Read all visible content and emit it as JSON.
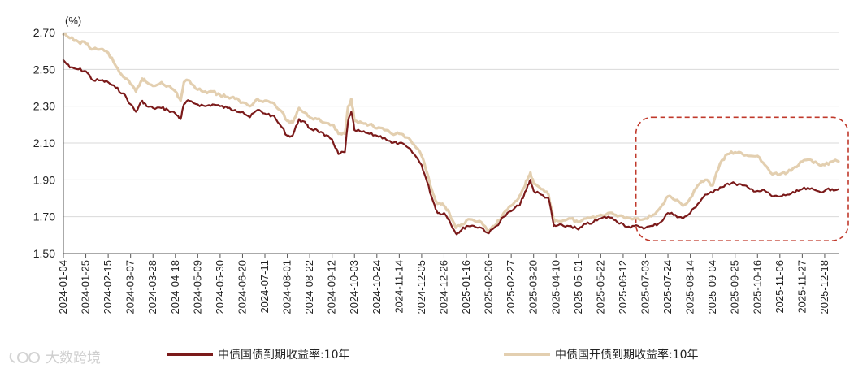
{
  "chart_data": {
    "type": "line",
    "unit_label": "(%)",
    "y_ticks": [
      "1.50",
      "1.70",
      "1.90",
      "2.10",
      "2.30",
      "2.50",
      "2.70"
    ],
    "ylim": [
      1.5,
      2.7
    ],
    "x_tick_labels": [
      "2024-01-04",
      "2024-01-25",
      "2024-02-15",
      "2024-03-07",
      "2024-03-28",
      "2024-04-18",
      "2024-05-09",
      "2024-05-30",
      "2024-06-20",
      "2024-07-11",
      "2024-08-01",
      "2024-08-22",
      "2024-09-12",
      "2024-10-03",
      "2024-10-24",
      "2024-11-14",
      "2024-12-05",
      "2024-12-26",
      "2025-01-16",
      "2025-02-06",
      "2025-02-27",
      "2025-03-20",
      "2025-04-10",
      "2025-05-01",
      "2025-05-22",
      "2025-06-12",
      "2025-07-03",
      "2025-07-24",
      "2025-08-14",
      "2025-09-04",
      "2025-09-25",
      "2025-10-16",
      "2025-11-06",
      "2025-11-27",
      "2025-12-18"
    ],
    "x_last": "2025-12-31",
    "grid": "horizontal",
    "legend_position": "bottom",
    "highlight_box": {
      "x_start": "2025-06-24",
      "x_end": "2025-12-31",
      "y_low": 1.57,
      "y_high": 2.24,
      "color": "#c0392b"
    },
    "series": [
      {
        "name": "中债国债到期收益率:10年",
        "color": "#7b1a1a",
        "points": [
          [
            "2024-01-04",
            2.55
          ],
          [
            "2024-01-10",
            2.51
          ],
          [
            "2024-01-18",
            2.5
          ],
          [
            "2024-01-25",
            2.49
          ],
          [
            "2024-02-01",
            2.44
          ],
          [
            "2024-02-08",
            2.44
          ],
          [
            "2024-02-15",
            2.43
          ],
          [
            "2024-02-22",
            2.4
          ],
          [
            "2024-02-29",
            2.37
          ],
          [
            "2024-03-07",
            2.31
          ],
          [
            "2024-03-12",
            2.27
          ],
          [
            "2024-03-18",
            2.33
          ],
          [
            "2024-03-22",
            2.3
          ],
          [
            "2024-03-28",
            2.29
          ],
          [
            "2024-04-05",
            2.29
          ],
          [
            "2024-04-11",
            2.28
          ],
          [
            "2024-04-18",
            2.26
          ],
          [
            "2024-04-23",
            2.23
          ],
          [
            "2024-04-26",
            2.31
          ],
          [
            "2024-05-01",
            2.33
          ],
          [
            "2024-05-09",
            2.31
          ],
          [
            "2024-05-16",
            2.3
          ],
          [
            "2024-05-23",
            2.31
          ],
          [
            "2024-05-30",
            2.3
          ],
          [
            "2024-06-06",
            2.29
          ],
          [
            "2024-06-13",
            2.28
          ],
          [
            "2024-06-20",
            2.27
          ],
          [
            "2024-06-27",
            2.24
          ],
          [
            "2024-07-04",
            2.28
          ],
          [
            "2024-07-11",
            2.26
          ],
          [
            "2024-07-18",
            2.25
          ],
          [
            "2024-07-25",
            2.2
          ],
          [
            "2024-08-01",
            2.14
          ],
          [
            "2024-08-06",
            2.14
          ],
          [
            "2024-08-12",
            2.23
          ],
          [
            "2024-08-19",
            2.2
          ],
          [
            "2024-08-22",
            2.18
          ],
          [
            "2024-08-29",
            2.17
          ],
          [
            "2024-09-05",
            2.14
          ],
          [
            "2024-09-12",
            2.12
          ],
          [
            "2024-09-18",
            2.04
          ],
          [
            "2024-09-24",
            2.05
          ],
          [
            "2024-09-27",
            2.22
          ],
          [
            "2024-09-30",
            2.27
          ],
          [
            "2024-10-03",
            2.17
          ],
          [
            "2024-10-10",
            2.16
          ],
          [
            "2024-10-17",
            2.15
          ],
          [
            "2024-10-24",
            2.14
          ],
          [
            "2024-10-31",
            2.13
          ],
          [
            "2024-11-07",
            2.1
          ],
          [
            "2024-11-14",
            2.1
          ],
          [
            "2024-11-21",
            2.08
          ],
          [
            "2024-11-28",
            2.04
          ],
          [
            "2024-12-05",
            1.98
          ],
          [
            "2024-12-10",
            1.89
          ],
          [
            "2024-12-16",
            1.78
          ],
          [
            "2024-12-20",
            1.72
          ],
          [
            "2024-12-26",
            1.72
          ],
          [
            "2024-12-31",
            1.68
          ],
          [
            "2025-01-06",
            1.61
          ],
          [
            "2025-01-10",
            1.62
          ],
          [
            "2025-01-16",
            1.65
          ],
          [
            "2025-01-23",
            1.65
          ],
          [
            "2025-01-30",
            1.64
          ],
          [
            "2025-02-06",
            1.61
          ],
          [
            "2025-02-13",
            1.65
          ],
          [
            "2025-02-20",
            1.7
          ],
          [
            "2025-02-27",
            1.73
          ],
          [
            "2025-03-06",
            1.76
          ],
          [
            "2025-03-10",
            1.8
          ],
          [
            "2025-03-14",
            1.86
          ],
          [
            "2025-03-17",
            1.9
          ],
          [
            "2025-03-20",
            1.84
          ],
          [
            "2025-03-27",
            1.82
          ],
          [
            "2025-04-03",
            1.8
          ],
          [
            "2025-04-08",
            1.65
          ],
          [
            "2025-04-10",
            1.65
          ],
          [
            "2025-04-17",
            1.65
          ],
          [
            "2025-04-24",
            1.65
          ],
          [
            "2025-05-01",
            1.63
          ],
          [
            "2025-05-08",
            1.66
          ],
          [
            "2025-05-15",
            1.67
          ],
          [
            "2025-05-22",
            1.69
          ],
          [
            "2025-05-29",
            1.7
          ],
          [
            "2025-06-05",
            1.68
          ],
          [
            "2025-06-12",
            1.66
          ],
          [
            "2025-06-19",
            1.64
          ],
          [
            "2025-06-26",
            1.65
          ],
          [
            "2025-07-03",
            1.64
          ],
          [
            "2025-07-10",
            1.65
          ],
          [
            "2025-07-17",
            1.67
          ],
          [
            "2025-07-24",
            1.72
          ],
          [
            "2025-07-31",
            1.71
          ],
          [
            "2025-08-07",
            1.69
          ],
          [
            "2025-08-14",
            1.72
          ],
          [
            "2025-08-21",
            1.77
          ],
          [
            "2025-08-28",
            1.82
          ],
          [
            "2025-09-04",
            1.83
          ],
          [
            "2025-09-11",
            1.86
          ],
          [
            "2025-09-18",
            1.88
          ],
          [
            "2025-09-25",
            1.88
          ],
          [
            "2025-10-02",
            1.87
          ],
          [
            "2025-10-09",
            1.85
          ],
          [
            "2025-10-16",
            1.84
          ],
          [
            "2025-10-23",
            1.84
          ],
          [
            "2025-10-30",
            1.81
          ],
          [
            "2025-11-06",
            1.81
          ],
          [
            "2025-11-13",
            1.82
          ],
          [
            "2025-11-20",
            1.83
          ],
          [
            "2025-11-27",
            1.85
          ],
          [
            "2025-12-04",
            1.85
          ],
          [
            "2025-12-11",
            1.84
          ],
          [
            "2025-12-18",
            1.84
          ],
          [
            "2025-12-25",
            1.85
          ],
          [
            "2025-12-31",
            1.85
          ]
        ]
      },
      {
        "name": "中债国开债到期收益率:10年",
        "color": "#e3cfb0",
        "points": [
          [
            "2024-01-04",
            2.69
          ],
          [
            "2024-01-10",
            2.67
          ],
          [
            "2024-01-18",
            2.65
          ],
          [
            "2024-01-25",
            2.64
          ],
          [
            "2024-02-01",
            2.61
          ],
          [
            "2024-02-08",
            2.61
          ],
          [
            "2024-02-15",
            2.59
          ],
          [
            "2024-02-22",
            2.52
          ],
          [
            "2024-02-29",
            2.46
          ],
          [
            "2024-03-07",
            2.42
          ],
          [
            "2024-03-12",
            2.38
          ],
          [
            "2024-03-18",
            2.45
          ],
          [
            "2024-03-22",
            2.43
          ],
          [
            "2024-03-28",
            2.41
          ],
          [
            "2024-04-05",
            2.43
          ],
          [
            "2024-04-11",
            2.41
          ],
          [
            "2024-04-18",
            2.38
          ],
          [
            "2024-04-23",
            2.33
          ],
          [
            "2024-04-26",
            2.43
          ],
          [
            "2024-05-01",
            2.44
          ],
          [
            "2024-05-09",
            2.39
          ],
          [
            "2024-05-16",
            2.38
          ],
          [
            "2024-05-23",
            2.38
          ],
          [
            "2024-05-30",
            2.36
          ],
          [
            "2024-06-06",
            2.35
          ],
          [
            "2024-06-13",
            2.34
          ],
          [
            "2024-06-20",
            2.32
          ],
          [
            "2024-06-27",
            2.3
          ],
          [
            "2024-07-04",
            2.34
          ],
          [
            "2024-07-11",
            2.33
          ],
          [
            "2024-07-18",
            2.32
          ],
          [
            "2024-07-25",
            2.28
          ],
          [
            "2024-08-01",
            2.22
          ],
          [
            "2024-08-06",
            2.21
          ],
          [
            "2024-08-12",
            2.29
          ],
          [
            "2024-08-19",
            2.26
          ],
          [
            "2024-08-22",
            2.24
          ],
          [
            "2024-08-29",
            2.23
          ],
          [
            "2024-09-05",
            2.21
          ],
          [
            "2024-09-12",
            2.2
          ],
          [
            "2024-09-18",
            2.15
          ],
          [
            "2024-09-24",
            2.15
          ],
          [
            "2024-09-27",
            2.3
          ],
          [
            "2024-09-30",
            2.34
          ],
          [
            "2024-10-03",
            2.22
          ],
          [
            "2024-10-10",
            2.21
          ],
          [
            "2024-10-17",
            2.2
          ],
          [
            "2024-10-24",
            2.18
          ],
          [
            "2024-10-31",
            2.17
          ],
          [
            "2024-11-07",
            2.15
          ],
          [
            "2024-11-14",
            2.15
          ],
          [
            "2024-11-21",
            2.13
          ],
          [
            "2024-11-28",
            2.09
          ],
          [
            "2024-12-05",
            2.03
          ],
          [
            "2024-12-10",
            1.94
          ],
          [
            "2024-12-16",
            1.82
          ],
          [
            "2024-12-20",
            1.77
          ],
          [
            "2024-12-26",
            1.76
          ],
          [
            "2024-12-31",
            1.72
          ],
          [
            "2025-01-06",
            1.64
          ],
          [
            "2025-01-10",
            1.65
          ],
          [
            "2025-01-16",
            1.68
          ],
          [
            "2025-01-23",
            1.68
          ],
          [
            "2025-01-30",
            1.67
          ],
          [
            "2025-02-06",
            1.62
          ],
          [
            "2025-02-13",
            1.66
          ],
          [
            "2025-02-20",
            1.72
          ],
          [
            "2025-02-27",
            1.76
          ],
          [
            "2025-03-06",
            1.8
          ],
          [
            "2025-03-10",
            1.85
          ],
          [
            "2025-03-14",
            1.9
          ],
          [
            "2025-03-17",
            1.94
          ],
          [
            "2025-03-20",
            1.88
          ],
          [
            "2025-03-27",
            1.85
          ],
          [
            "2025-04-03",
            1.82
          ],
          [
            "2025-04-08",
            1.68
          ],
          [
            "2025-04-10",
            1.68
          ],
          [
            "2025-04-17",
            1.68
          ],
          [
            "2025-04-24",
            1.69
          ],
          [
            "2025-05-01",
            1.67
          ],
          [
            "2025-05-08",
            1.69
          ],
          [
            "2025-05-15",
            1.7
          ],
          [
            "2025-05-22",
            1.71
          ],
          [
            "2025-05-29",
            1.72
          ],
          [
            "2025-06-05",
            1.71
          ],
          [
            "2025-06-12",
            1.7
          ],
          [
            "2025-06-19",
            1.69
          ],
          [
            "2025-06-26",
            1.69
          ],
          [
            "2025-07-03",
            1.69
          ],
          [
            "2025-07-10",
            1.71
          ],
          [
            "2025-07-17",
            1.75
          ],
          [
            "2025-07-24",
            1.81
          ],
          [
            "2025-07-31",
            1.79
          ],
          [
            "2025-08-07",
            1.76
          ],
          [
            "2025-08-14",
            1.8
          ],
          [
            "2025-08-21",
            1.87
          ],
          [
            "2025-08-28",
            1.9
          ],
          [
            "2025-09-04",
            1.87
          ],
          [
            "2025-09-11",
            1.99
          ],
          [
            "2025-09-18",
            2.04
          ],
          [
            "2025-09-25",
            2.05
          ],
          [
            "2025-10-02",
            2.04
          ],
          [
            "2025-10-09",
            2.03
          ],
          [
            "2025-10-16",
            2.03
          ],
          [
            "2025-10-23",
            1.98
          ],
          [
            "2025-10-30",
            1.93
          ],
          [
            "2025-11-06",
            1.93
          ],
          [
            "2025-11-13",
            1.94
          ],
          [
            "2025-11-20",
            1.97
          ],
          [
            "2025-11-27",
            2.0
          ],
          [
            "2025-12-04",
            2.01
          ],
          [
            "2025-12-11",
            1.99
          ],
          [
            "2025-12-18",
            1.98
          ],
          [
            "2025-12-25",
            2.0
          ],
          [
            "2025-12-31",
            2.0
          ]
        ]
      }
    ]
  },
  "watermark": {
    "text": "大数跨境",
    "icon": "logo-icon"
  }
}
